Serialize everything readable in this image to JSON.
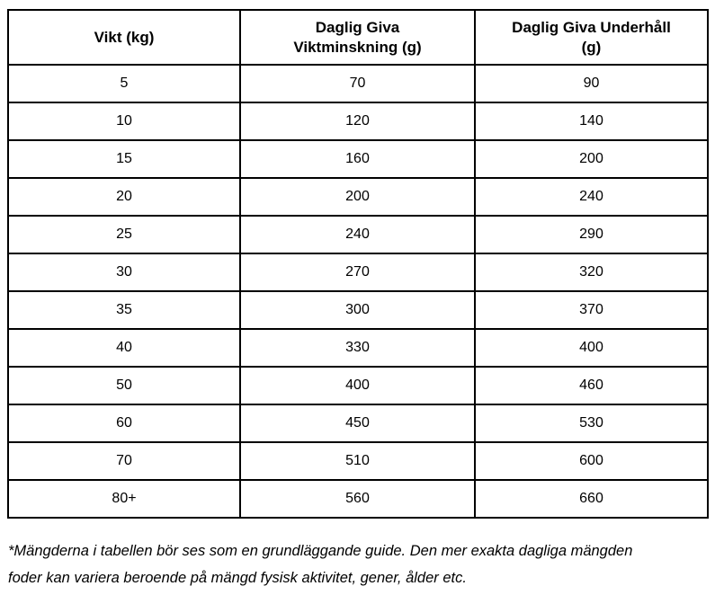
{
  "page": {
    "background_color": "#ffffff",
    "border_color": "#000000",
    "text_color": "#000000"
  },
  "table": {
    "columns": [
      {
        "label": "Vikt (kg)"
      },
      {
        "label": "Daglig Giva\nViktminskning (g)"
      },
      {
        "label": "Daglig Giva Underhåll\n(g)"
      }
    ],
    "rows": [
      [
        "5",
        "70",
        "90"
      ],
      [
        "10",
        "120",
        "140"
      ],
      [
        "15",
        "160",
        "200"
      ],
      [
        "20",
        "200",
        "240"
      ],
      [
        "25",
        "240",
        "290"
      ],
      [
        "30",
        "270",
        "320"
      ],
      [
        "35",
        "300",
        "370"
      ],
      [
        "40",
        "330",
        "400"
      ],
      [
        "50",
        "400",
        "460"
      ],
      [
        "60",
        "450",
        "530"
      ],
      [
        "70",
        "510",
        "600"
      ],
      [
        "80+",
        "560",
        "660"
      ]
    ]
  },
  "footnote": {
    "text": "*Mängderna i tabellen bör ses som en grundläggande guide. Den mer exakta dagliga mängden\nfoder kan variera beroende på mängd fysisk aktivitet, gener, ålder etc."
  }
}
